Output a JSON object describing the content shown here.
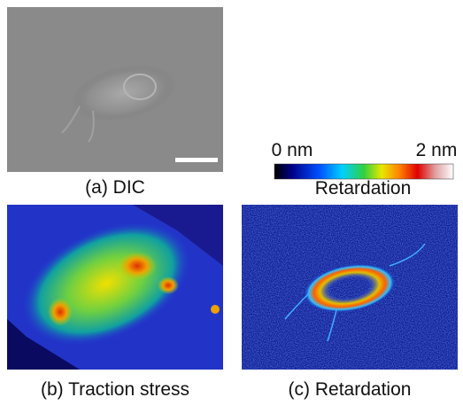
{
  "panels": [
    {
      "caption": "(a) DIC"
    },
    {
      "caption": "(b) Traction stress"
    },
    {
      "caption": "(c) Retardation"
    }
  ],
  "colorbar": {
    "min_label": "0 nm",
    "max_label": "2 nm",
    "title": "Retardation"
  }
}
